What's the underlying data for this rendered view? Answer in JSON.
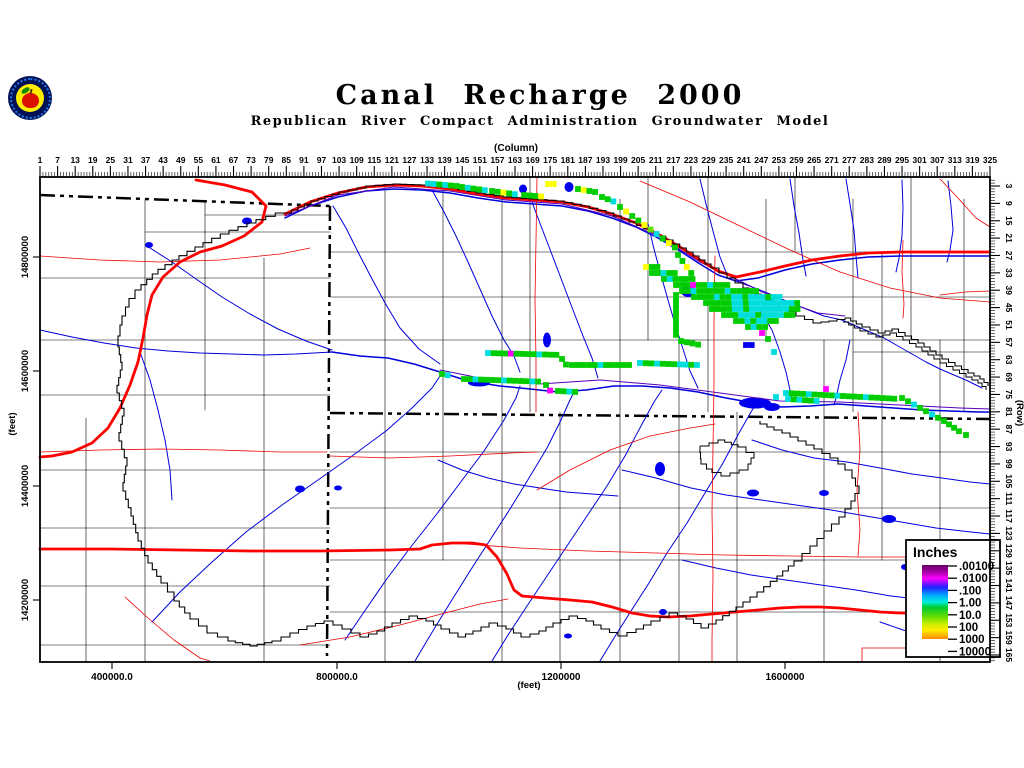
{
  "header": {
    "title": "Canal Recharge 2000",
    "subtitle": "Republican River Compact Administration Groundwater Model",
    "logo": "rrca-apple-seal"
  },
  "axes": {
    "top": {
      "label": "(Column)",
      "ticks": [
        1,
        7,
        13,
        19,
        25,
        31,
        37,
        43,
        49,
        55,
        61,
        67,
        73,
        79,
        85,
        91,
        97,
        103,
        109,
        115,
        121,
        127,
        133,
        139,
        145,
        151,
        157,
        163,
        169,
        175,
        181,
        187,
        193,
        199,
        205,
        211,
        217,
        223,
        229,
        235,
        241,
        247,
        253,
        259,
        265,
        271,
        277,
        283,
        289,
        295,
        301,
        307,
        313,
        319,
        325
      ]
    },
    "right": {
      "label": "(Row)",
      "ticks": [
        3,
        9,
        15,
        21,
        27,
        33,
        39,
        45,
        51,
        57,
        63,
        69,
        75,
        81,
        87,
        93,
        99,
        105,
        111,
        117,
        123,
        129,
        135,
        141,
        147,
        153,
        159,
        165
      ]
    },
    "left": {
      "label": "(feet)",
      "ticks": [
        "14800000",
        "14600000",
        "14400000",
        "14200000"
      ]
    },
    "bottom": {
      "label": "(feet)",
      "ticks": [
        "400000.0",
        "800000.0",
        "1200000",
        "1600000"
      ]
    }
  },
  "legend": {
    "title": "Inches",
    "entries": [
      ".00100",
      ".0100",
      ".100",
      "1.00",
      "10.0",
      "100",
      "1000",
      "10000"
    ],
    "gradient": [
      {
        "o": 0.0,
        "c": "#660066"
      },
      {
        "o": 0.1,
        "c": "#AA00AA"
      },
      {
        "o": 0.18,
        "c": "#FF00FF"
      },
      {
        "o": 0.3,
        "c": "#2222FF"
      },
      {
        "o": 0.41,
        "c": "#00AAFF"
      },
      {
        "o": 0.5,
        "c": "#00EEDD"
      },
      {
        "o": 0.57,
        "c": "#00CC33"
      },
      {
        "o": 0.7,
        "c": "#66DD00"
      },
      {
        "o": 0.8,
        "c": "#CCEE00"
      },
      {
        "o": 0.88,
        "c": "#FFEE00"
      },
      {
        "o": 1.0,
        "c": "#FF8800"
      }
    ]
  },
  "map": {
    "feature_colors": {
      "river": "#0000DD",
      "lake": "#0000EE",
      "road_minor": "#EE0000",
      "road_major": "#FF0000",
      "state_boundary": "#000000",
      "county_boundary": "#000000",
      "model_boundary": "#000000",
      "basin_line": "#5500BB",
      "cell_green": "#00CC00",
      "cell_green2": "#66DD00",
      "cell_cyan": "#00DDDD",
      "cell_yellow": "#FFFF00",
      "cell_blue": "#0000EE",
      "cell_magenta": "#FF00FF"
    }
  }
}
